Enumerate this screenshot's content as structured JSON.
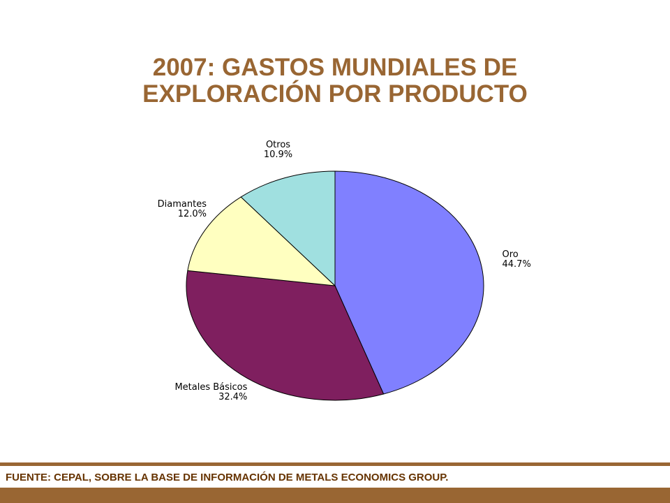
{
  "title": {
    "line1": "2007: GASTOS MUNDIALES  DE",
    "line2": "EXPLORACIÓN POR PRODUCTO"
  },
  "source": "FUENTE: CEPAL, SOBRE LA BASE DE INFORMACIÓN DE METALS ECONOMICS GROUP.",
  "colors": {
    "accent": "#996633",
    "source_text": "#663300",
    "rule": "#996633"
  },
  "chart_data": {
    "type": "pie",
    "title": "2007: GASTOS MUNDIALES  DE EXPLORACIÓN POR PRODUCTO",
    "start": "top, clockwise",
    "slices": [
      {
        "label": "Oro",
        "value": 44.7,
        "value_label": "44.7%",
        "color": "#8080ff"
      },
      {
        "label": "Metales Básicos",
        "value": 32.4,
        "value_label": "32.4%",
        "color": "#7f1f5f"
      },
      {
        "label": "Diamantes",
        "value": 12.0,
        "value_label": "12.0%",
        "color": "#ffffc0"
      },
      {
        "label": "Otros",
        "value": 10.9,
        "value_label": "10.9%",
        "color": "#a0e0e0"
      }
    ]
  }
}
